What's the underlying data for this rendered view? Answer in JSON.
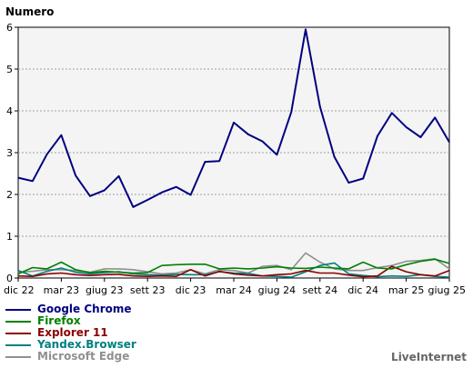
{
  "chart_data": {
    "type": "line",
    "ylabel": "Numero",
    "ylim": [
      0,
      6
    ],
    "yticks": [
      0,
      1,
      2,
      3,
      4,
      5,
      6
    ],
    "grid": "horizontal dashed",
    "xtick_labels": [
      "dic 22",
      "mar 23",
      "giug 23",
      "sett 23",
      "dic 23",
      "mar 24",
      "giug 24",
      "sett 24",
      "dic 24",
      "mar 25",
      "giug 25"
    ],
    "xtick_index": [
      0,
      3,
      6,
      9,
      12,
      15,
      18,
      21,
      24,
      27,
      30
    ],
    "n_points": 31,
    "series": [
      {
        "name": "Google Chrome",
        "color": "#000080",
        "values": [
          2.4,
          2.32,
          2.96,
          3.42,
          2.45,
          1.96,
          2.1,
          2.44,
          1.7,
          1.87,
          2.05,
          2.18,
          1.99,
          2.78,
          2.8,
          3.72,
          3.44,
          3.27,
          2.95,
          3.97,
          5.95,
          4.1,
          2.9,
          2.28,
          2.38,
          3.4,
          3.95,
          3.61,
          3.37,
          3.84,
          3.25
        ]
      },
      {
        "name": "Firefox",
        "color": "#008000",
        "values": [
          0.1,
          0.25,
          0.22,
          0.38,
          0.2,
          0.13,
          0.16,
          0.14,
          0.12,
          0.13,
          0.3,
          0.32,
          0.33,
          0.33,
          0.22,
          0.24,
          0.22,
          0.24,
          0.27,
          0.24,
          0.23,
          0.26,
          0.24,
          0.22,
          0.38,
          0.24,
          0.22,
          0.32,
          0.4,
          0.45,
          0.35
        ]
      },
      {
        "name": "Explorer 11",
        "color": "#8b0000",
        "values": [
          0.05,
          0.04,
          0.1,
          0.12,
          0.08,
          0.06,
          0.08,
          0.09,
          0.05,
          0.04,
          0.05,
          0.04,
          0.2,
          0.05,
          0.16,
          0.1,
          0.07,
          0.05,
          0.08,
          0.1,
          0.18,
          0.12,
          0.12,
          0.07,
          0.03,
          0.05,
          0.28,
          0.15,
          0.08,
          0.05,
          0.18
        ]
      },
      {
        "name": "Yandex.Browser",
        "color": "#008080",
        "values": [
          0.18,
          0.05,
          0.16,
          0.24,
          0.14,
          0.1,
          0.13,
          0.15,
          0.1,
          0.08,
          0.07,
          0.09,
          0.08,
          0.08,
          0.15,
          0.12,
          0.11,
          0.05,
          0.04,
          0.02,
          0.15,
          0.3,
          0.36,
          0.1,
          0.06,
          0.03,
          0.05,
          0.04,
          0.08,
          0.04,
          0.02
        ]
      },
      {
        "name": "Microsoft Edge",
        "color": "#909090",
        "values": [
          0.14,
          0.16,
          0.2,
          0.2,
          0.18,
          0.14,
          0.22,
          0.22,
          0.2,
          0.15,
          0.1,
          0.12,
          0.2,
          0.1,
          0.2,
          0.18,
          0.12,
          0.28,
          0.3,
          0.2,
          0.6,
          0.38,
          0.22,
          0.18,
          0.18,
          0.25,
          0.3,
          0.4,
          0.42,
          0.46,
          0.22
        ]
      }
    ]
  },
  "watermark": "LiveInternet"
}
